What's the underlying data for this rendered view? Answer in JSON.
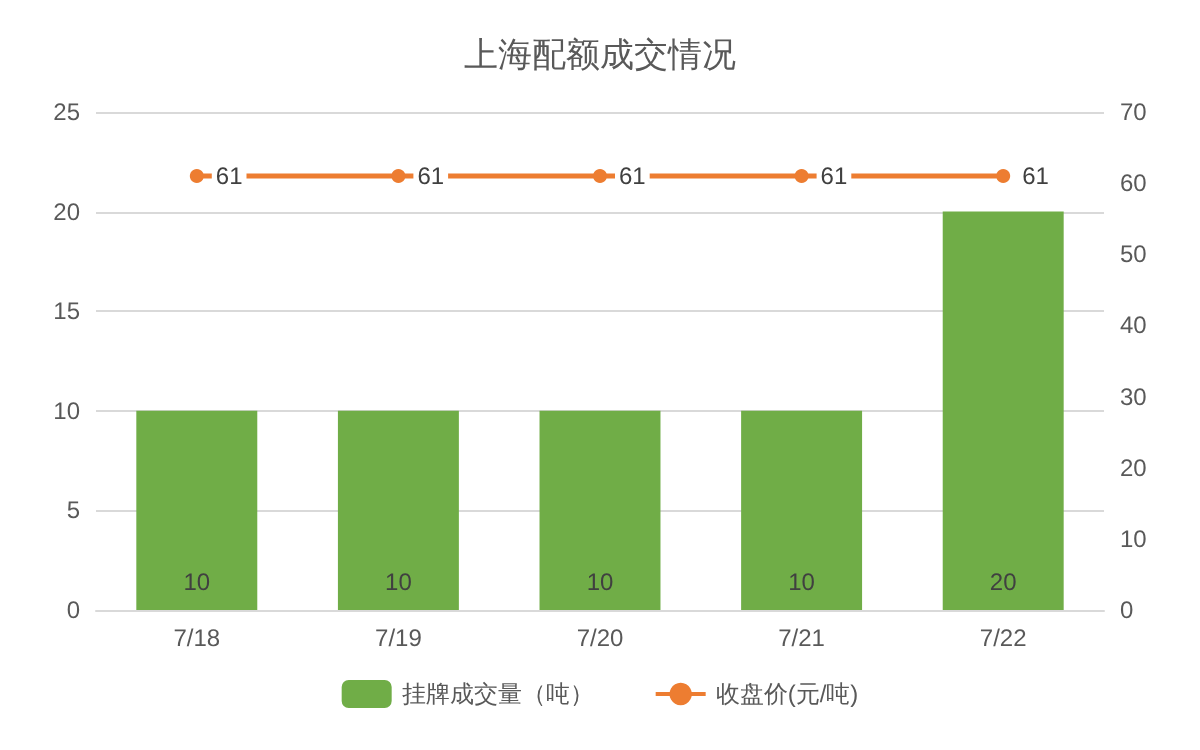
{
  "chart_data": {
    "type": "bar",
    "title": "上海配额成交情况",
    "categories": [
      "7/18",
      "7/19",
      "7/20",
      "7/21",
      "7/22"
    ],
    "series": [
      {
        "name": "挂牌成交量（吨）",
        "color": "#70ad47",
        "values": [
          10,
          10,
          10,
          10,
          20
        ]
      },
      {
        "name": "收盘价(元/吨)",
        "type": "line",
        "axis": "y2",
        "color": "#ed7d31",
        "values": [
          61,
          61,
          61,
          61,
          61
        ]
      }
    ],
    "ylim": [
      0,
      25
    ],
    "yticks": [
      0,
      5,
      10,
      15,
      20,
      25
    ],
    "y2lim": [
      0,
      70
    ],
    "y2ticks": [
      0,
      10,
      20,
      30,
      40,
      50,
      60,
      70
    ],
    "grid": "y",
    "legend": "bottom",
    "marker": "circle",
    "line_style": "solid",
    "data_labels": true
  }
}
